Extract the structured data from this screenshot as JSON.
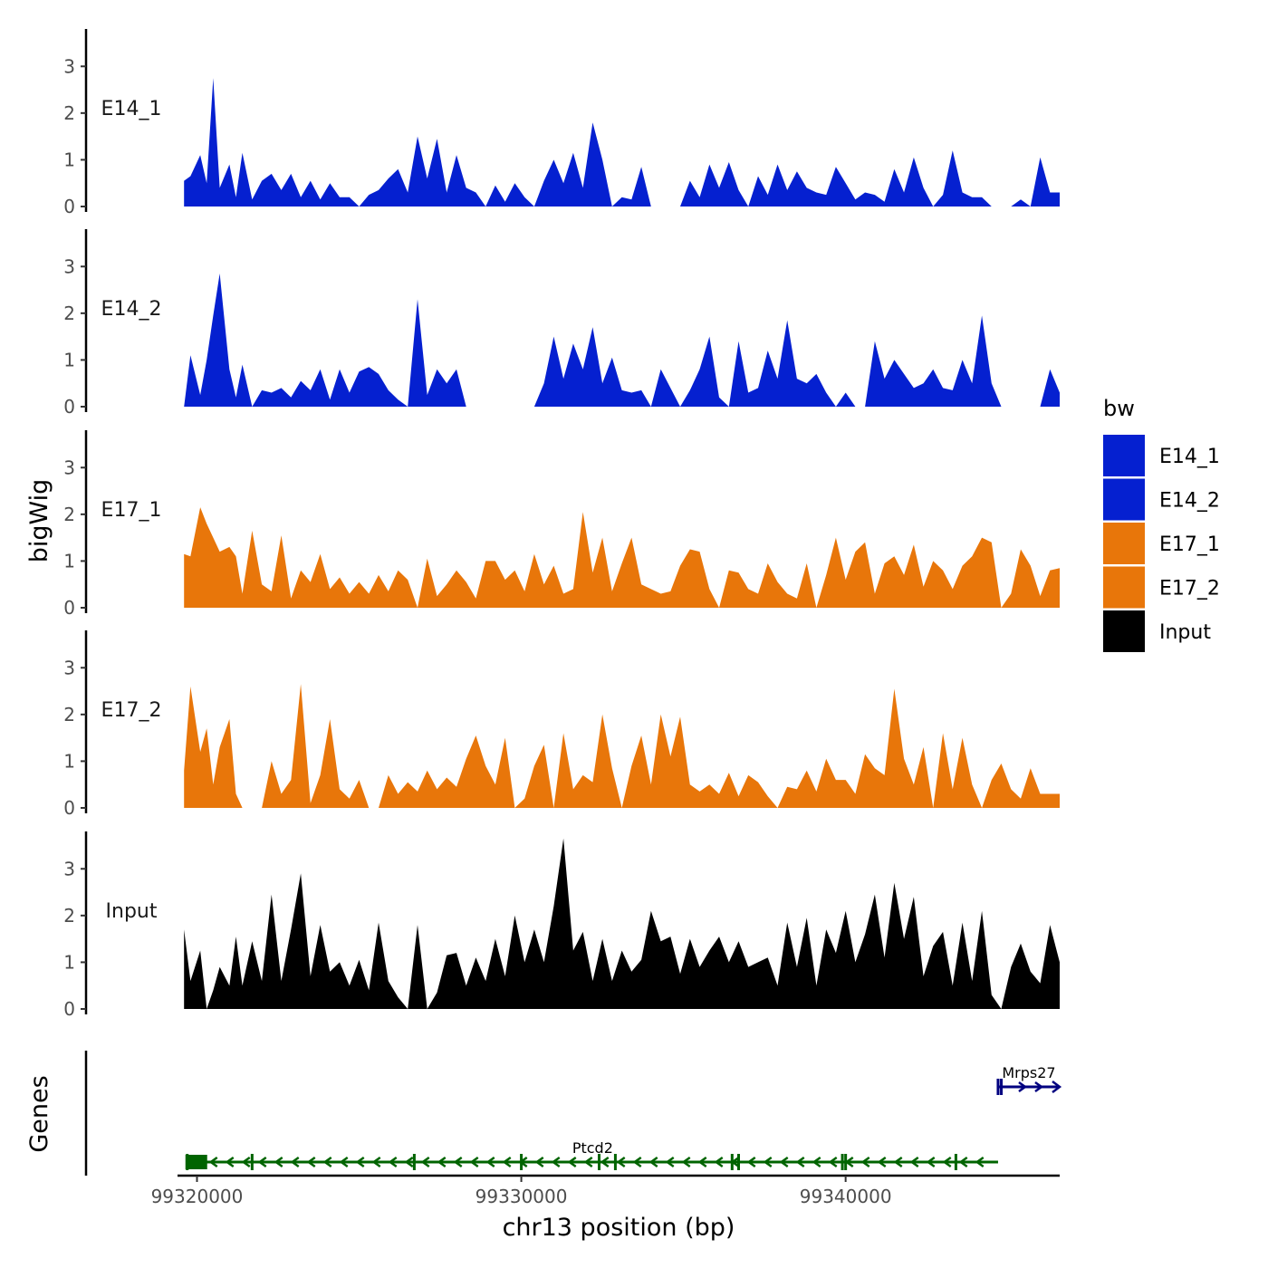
{
  "chart_data": {
    "type": "area",
    "title": "",
    "xlabel": "chr13 position (bp)",
    "ylabel": "bigWig",
    "genes_ylabel": "Genes",
    "chromosome": "chr13",
    "xlim": [
      99319400,
      99346600
    ],
    "ylim": [
      0,
      3.8
    ],
    "y_ticks": [
      0,
      1,
      2,
      3
    ],
    "x_ticks": [
      99320000,
      99330000,
      99340000
    ],
    "x_tick_labels": [
      "99320000",
      "99330000",
      "99340000"
    ],
    "legend": {
      "title": "bw",
      "position": "right",
      "entries": [
        {
          "label": "E14_1",
          "color": "#0520D0"
        },
        {
          "label": "E14_2",
          "color": "#0520D0"
        },
        {
          "label": "E17_1",
          "color": "#E8760A"
        },
        {
          "label": "E17_2",
          "color": "#E8760A"
        },
        {
          "label": "Input",
          "color": "#000000"
        }
      ]
    },
    "series": [
      {
        "name": "E14_1",
        "color": "#0520D0",
        "x": [
          99319600,
          99319800,
          99320100,
          99320300,
          99320500,
          99320700,
          99321000,
          99321200,
          99321400,
          99321700,
          99322000,
          99322300,
          99322600,
          99322900,
          99323200,
          99323500,
          99323800,
          99324100,
          99324400,
          99324700,
          99325000,
          99325300,
          99325600,
          99325900,
          99326200,
          99326500,
          99326800,
          99327100,
          99327400,
          99327700,
          99328000,
          99328300,
          99328600,
          99328900,
          99329200,
          99329500,
          99329800,
          99330100,
          99330400,
          99330700,
          99331000,
          99331300,
          99331600,
          99331900,
          99332200,
          99332500,
          99332800,
          99333100,
          99333400,
          99333700,
          99334000,
          99334300,
          99334600,
          99334900,
          99335200,
          99335500,
          99335800,
          99336100,
          99336400,
          99336700,
          99337000,
          99337300,
          99337600,
          99337900,
          99338200,
          99338500,
          99338800,
          99339100,
          99339400,
          99339700,
          99340000,
          99340300,
          99340600,
          99340900,
          99341200,
          99341500,
          99341800,
          99342100,
          99342400,
          99342700,
          99343000,
          99343300,
          99343600,
          99343900,
          99344200,
          99344500,
          99344800,
          99345100,
          99345400,
          99345700,
          99346000,
          99346300,
          99346600
        ],
        "values": [
          0.55,
          0.65,
          1.1,
          0.5,
          2.75,
          0.4,
          0.9,
          0.2,
          1.15,
          0.15,
          0.55,
          0.7,
          0.35,
          0.7,
          0.2,
          0.55,
          0.15,
          0.5,
          0.2,
          0.2,
          0.0,
          0.25,
          0.35,
          0.6,
          0.8,
          0.3,
          1.5,
          0.6,
          1.45,
          0.3,
          1.1,
          0.4,
          0.3,
          0.0,
          0.45,
          0.1,
          0.5,
          0.2,
          0.0,
          0.55,
          1.0,
          0.5,
          1.15,
          0.4,
          1.8,
          1.0,
          0.0,
          0.2,
          0.15,
          0.85,
          0.0,
          0.0,
          0.0,
          0.0,
          0.55,
          0.2,
          0.9,
          0.4,
          0.95,
          0.35,
          0.0,
          0.65,
          0.25,
          0.9,
          0.35,
          0.75,
          0.4,
          0.3,
          0.25,
          0.85,
          0.5,
          0.15,
          0.3,
          0.25,
          0.1,
          0.8,
          0.3,
          1.05,
          0.4,
          0.0,
          0.25,
          1.2,
          0.3,
          0.2,
          0.2,
          0.0,
          0.0,
          0.0,
          0.15,
          0.0,
          1.05,
          0.3,
          0.3
        ]
      },
      {
        "name": "E14_2",
        "color": "#0520D0",
        "x": [
          99319600,
          99319800,
          99320100,
          99320300,
          99320500,
          99320700,
          99321000,
          99321200,
          99321400,
          99321700,
          99322000,
          99322300,
          99322600,
          99322900,
          99323200,
          99323500,
          99323800,
          99324100,
          99324400,
          99324700,
          99325000,
          99325300,
          99325600,
          99325900,
          99326200,
          99326500,
          99326800,
          99327100,
          99327400,
          99327700,
          99328000,
          99328300,
          99328600,
          99328900,
          99329200,
          99329500,
          99329800,
          99330100,
          99330400,
          99330700,
          99331000,
          99331300,
          99331600,
          99331900,
          99332200,
          99332500,
          99332800,
          99333100,
          99333400,
          99333700,
          99334000,
          99334300,
          99334600,
          99334900,
          99335200,
          99335500,
          99335800,
          99336100,
          99336400,
          99336700,
          99337000,
          99337300,
          99337600,
          99337900,
          99338200,
          99338500,
          99338800,
          99339100,
          99339400,
          99339700,
          99340000,
          99340300,
          99340600,
          99340900,
          99341200,
          99341500,
          99341800,
          99342100,
          99342400,
          99342700,
          99343000,
          99343300,
          99343600,
          99343900,
          99344200,
          99344500,
          99344800,
          99345100,
          99345400,
          99345700,
          99346000,
          99346300,
          99346600
        ],
        "values": [
          0.0,
          1.1,
          0.25,
          1.0,
          1.95,
          2.85,
          0.8,
          0.2,
          0.9,
          0.0,
          0.35,
          0.3,
          0.4,
          0.2,
          0.55,
          0.35,
          0.8,
          0.15,
          0.8,
          0.3,
          0.75,
          0.85,
          0.7,
          0.35,
          0.15,
          0.0,
          2.3,
          0.25,
          0.8,
          0.5,
          0.8,
          0.0,
          0.0,
          0.0,
          0.0,
          0.0,
          0.0,
          0.0,
          0.0,
          0.5,
          1.5,
          0.6,
          1.35,
          0.8,
          1.7,
          0.5,
          1.05,
          0.35,
          0.3,
          0.35,
          0.0,
          0.8,
          0.4,
          0.0,
          0.35,
          0.8,
          1.5,
          0.2,
          0.0,
          1.4,
          0.3,
          0.4,
          1.2,
          0.6,
          1.85,
          0.6,
          0.5,
          0.7,
          0.3,
          0.0,
          0.3,
          0.0,
          0.0,
          1.4,
          0.6,
          1.0,
          0.7,
          0.4,
          0.5,
          0.8,
          0.4,
          0.35,
          1.0,
          0.5,
          1.95,
          0.5,
          0.0,
          0.0,
          0.0,
          0.0,
          0.0,
          0.8,
          0.3
        ]
      },
      {
        "name": "E17_1",
        "color": "#E8760A",
        "x": [
          99319600,
          99319800,
          99320100,
          99320300,
          99320500,
          99320700,
          99321000,
          99321200,
          99321400,
          99321700,
          99322000,
          99322300,
          99322600,
          99322900,
          99323200,
          99323500,
          99323800,
          99324100,
          99324400,
          99324700,
          99325000,
          99325300,
          99325600,
          99325900,
          99326200,
          99326500,
          99326800,
          99327100,
          99327400,
          99327700,
          99328000,
          99328300,
          99328600,
          99328900,
          99329200,
          99329500,
          99329800,
          99330100,
          99330400,
          99330700,
          99331000,
          99331300,
          99331600,
          99331900,
          99332200,
          99332500,
          99332800,
          99333100,
          99333400,
          99333700,
          99334000,
          99334300,
          99334600,
          99334900,
          99335200,
          99335500,
          99335800,
          99336100,
          99336400,
          99336700,
          99337000,
          99337300,
          99337600,
          99337900,
          99338200,
          99338500,
          99338800,
          99339100,
          99339400,
          99339700,
          99340000,
          99340300,
          99340600,
          99340900,
          99341200,
          99341500,
          99341800,
          99342100,
          99342400,
          99342700,
          99343000,
          99343300,
          99343600,
          99343900,
          99344200,
          99344500,
          99344800,
          99345100,
          99345400,
          99345700,
          99346000,
          99346300,
          99346600
        ],
        "values": [
          1.15,
          1.1,
          2.15,
          1.8,
          1.5,
          1.2,
          1.3,
          1.1,
          0.3,
          1.65,
          0.5,
          0.35,
          1.55,
          0.2,
          0.8,
          0.55,
          1.15,
          0.4,
          0.65,
          0.3,
          0.55,
          0.3,
          0.7,
          0.35,
          0.8,
          0.6,
          0.0,
          1.05,
          0.25,
          0.5,
          0.8,
          0.55,
          0.2,
          1.0,
          1.0,
          0.6,
          0.8,
          0.35,
          1.15,
          0.5,
          0.9,
          0.3,
          0.4,
          2.05,
          0.75,
          1.5,
          0.35,
          0.95,
          1.5,
          0.5,
          0.4,
          0.3,
          0.35,
          0.9,
          1.25,
          1.2,
          0.4,
          0.0,
          0.8,
          0.75,
          0.4,
          0.3,
          0.95,
          0.55,
          0.3,
          0.2,
          0.95,
          0.0,
          0.7,
          1.5,
          0.6,
          1.2,
          1.4,
          0.3,
          0.95,
          1.1,
          0.7,
          1.35,
          0.45,
          1.0,
          0.8,
          0.4,
          0.9,
          1.1,
          1.5,
          1.4,
          0.0,
          0.3,
          1.25,
          0.9,
          0.25,
          0.8,
          0.85
        ]
      },
      {
        "name": "E17_2",
        "color": "#E8760A",
        "x": [
          99319600,
          99319800,
          99320100,
          99320300,
          99320500,
          99320700,
          99321000,
          99321200,
          99321400,
          99321700,
          99322000,
          99322300,
          99322600,
          99322900,
          99323200,
          99323500,
          99323800,
          99324100,
          99324400,
          99324700,
          99325000,
          99325300,
          99325600,
          99325900,
          99326200,
          99326500,
          99326800,
          99327100,
          99327400,
          99327700,
          99328000,
          99328300,
          99328600,
          99328900,
          99329200,
          99329500,
          99329800,
          99330100,
          99330400,
          99330700,
          99331000,
          99331300,
          99331600,
          99331900,
          99332200,
          99332500,
          99332800,
          99333100,
          99333400,
          99333700,
          99334000,
          99334300,
          99334600,
          99334900,
          99335200,
          99335500,
          99335800,
          99336100,
          99336400,
          99336700,
          99337000,
          99337300,
          99337600,
          99337900,
          99338200,
          99338500,
          99338800,
          99339100,
          99339400,
          99339700,
          99340000,
          99340300,
          99340600,
          99340900,
          99341200,
          99341500,
          99341800,
          99342100,
          99342400,
          99342700,
          99343000,
          99343300,
          99343600,
          99343900,
          99344200,
          99344500,
          99344800,
          99345100,
          99345400,
          99345700,
          99346000,
          99346300,
          99346600
        ],
        "values": [
          0.8,
          2.6,
          1.2,
          1.7,
          0.5,
          1.3,
          1.9,
          0.3,
          0.0,
          0.0,
          0.0,
          1.0,
          0.3,
          0.6,
          2.65,
          0.1,
          0.7,
          1.9,
          0.4,
          0.2,
          0.6,
          0.0,
          0.0,
          0.7,
          0.3,
          0.55,
          0.35,
          0.8,
          0.4,
          0.65,
          0.45,
          1.05,
          1.55,
          0.9,
          0.5,
          1.5,
          0.0,
          0.2,
          0.9,
          1.35,
          0.0,
          1.6,
          0.4,
          0.7,
          0.55,
          2.0,
          0.85,
          0.0,
          0.9,
          1.55,
          0.5,
          2.0,
          1.1,
          1.95,
          0.5,
          0.35,
          0.5,
          0.3,
          0.75,
          0.25,
          0.7,
          0.55,
          0.25,
          0.0,
          0.45,
          0.4,
          0.8,
          0.35,
          1.05,
          0.6,
          0.6,
          0.3,
          1.15,
          0.85,
          0.7,
          2.55,
          1.05,
          0.5,
          1.3,
          0.0,
          1.6,
          0.4,
          1.5,
          0.5,
          0.0,
          0.6,
          0.95,
          0.4,
          0.2,
          0.85,
          0.3,
          0.3,
          0.3
        ]
      },
      {
        "name": "Input",
        "color": "#000000",
        "x": [
          99319600,
          99319800,
          99320100,
          99320300,
          99320500,
          99320700,
          99321000,
          99321200,
          99321400,
          99321700,
          99322000,
          99322300,
          99322600,
          99322900,
          99323200,
          99323500,
          99323800,
          99324100,
          99324400,
          99324700,
          99325000,
          99325300,
          99325600,
          99325900,
          99326200,
          99326500,
          99326800,
          99327100,
          99327400,
          99327700,
          99328000,
          99328300,
          99328600,
          99328900,
          99329200,
          99329500,
          99329800,
          99330100,
          99330400,
          99330700,
          99331000,
          99331300,
          99331600,
          99331900,
          99332200,
          99332500,
          99332800,
          99333100,
          99333400,
          99333700,
          99334000,
          99334300,
          99334600,
          99334900,
          99335200,
          99335500,
          99335800,
          99336100,
          99336400,
          99336700,
          99337000,
          99337300,
          99337600,
          99337900,
          99338200,
          99338500,
          99338800,
          99339100,
          99339400,
          99339700,
          99340000,
          99340300,
          99340600,
          99340900,
          99341200,
          99341500,
          99341800,
          99342100,
          99342400,
          99342700,
          99343000,
          99343300,
          99343600,
          99343900,
          99344200,
          99344500,
          99344800,
          99345100,
          99345400,
          99345700,
          99346000,
          99346300,
          99346600
        ],
        "values": [
          1.7,
          0.6,
          1.25,
          0.0,
          0.4,
          0.9,
          0.5,
          1.55,
          0.5,
          1.45,
          0.6,
          2.45,
          0.6,
          1.7,
          2.9,
          0.7,
          1.8,
          0.8,
          1.0,
          0.5,
          1.05,
          0.4,
          1.85,
          0.6,
          0.25,
          0.0,
          1.8,
          0.0,
          0.35,
          1.15,
          1.2,
          0.5,
          1.1,
          0.6,
          1.5,
          0.7,
          2.0,
          1.0,
          1.7,
          1.0,
          2.2,
          3.65,
          1.25,
          1.65,
          0.6,
          1.5,
          0.6,
          1.25,
          0.8,
          1.05,
          2.1,
          1.45,
          1.55,
          0.75,
          1.5,
          0.9,
          1.25,
          1.55,
          1.0,
          1.45,
          0.9,
          1.0,
          1.1,
          0.5,
          1.85,
          0.9,
          1.95,
          0.5,
          1.7,
          1.2,
          2.1,
          1.0,
          1.6,
          2.45,
          1.1,
          2.7,
          1.5,
          2.4,
          0.7,
          1.35,
          1.65,
          0.5,
          1.85,
          0.6,
          2.1,
          0.3,
          0.0,
          0.9,
          1.4,
          0.8,
          0.55,
          1.8,
          1.0
        ]
      }
    ],
    "genes": [
      {
        "name": "Ptcd2",
        "start": 99319700,
        "end": 99344700,
        "strand": "-",
        "color": "#006400",
        "exons": [
          99319700,
          99321700,
          99326700,
          99330000,
          99332400,
          99332900,
          99336500,
          99336700,
          99339900,
          99340000,
          99343400
        ]
      },
      {
        "name": "Mrps27",
        "start": 99344700,
        "end": 99346600,
        "strand": "+",
        "color": "#000080",
        "exons": [
          99344700,
          99344800
        ]
      }
    ]
  }
}
